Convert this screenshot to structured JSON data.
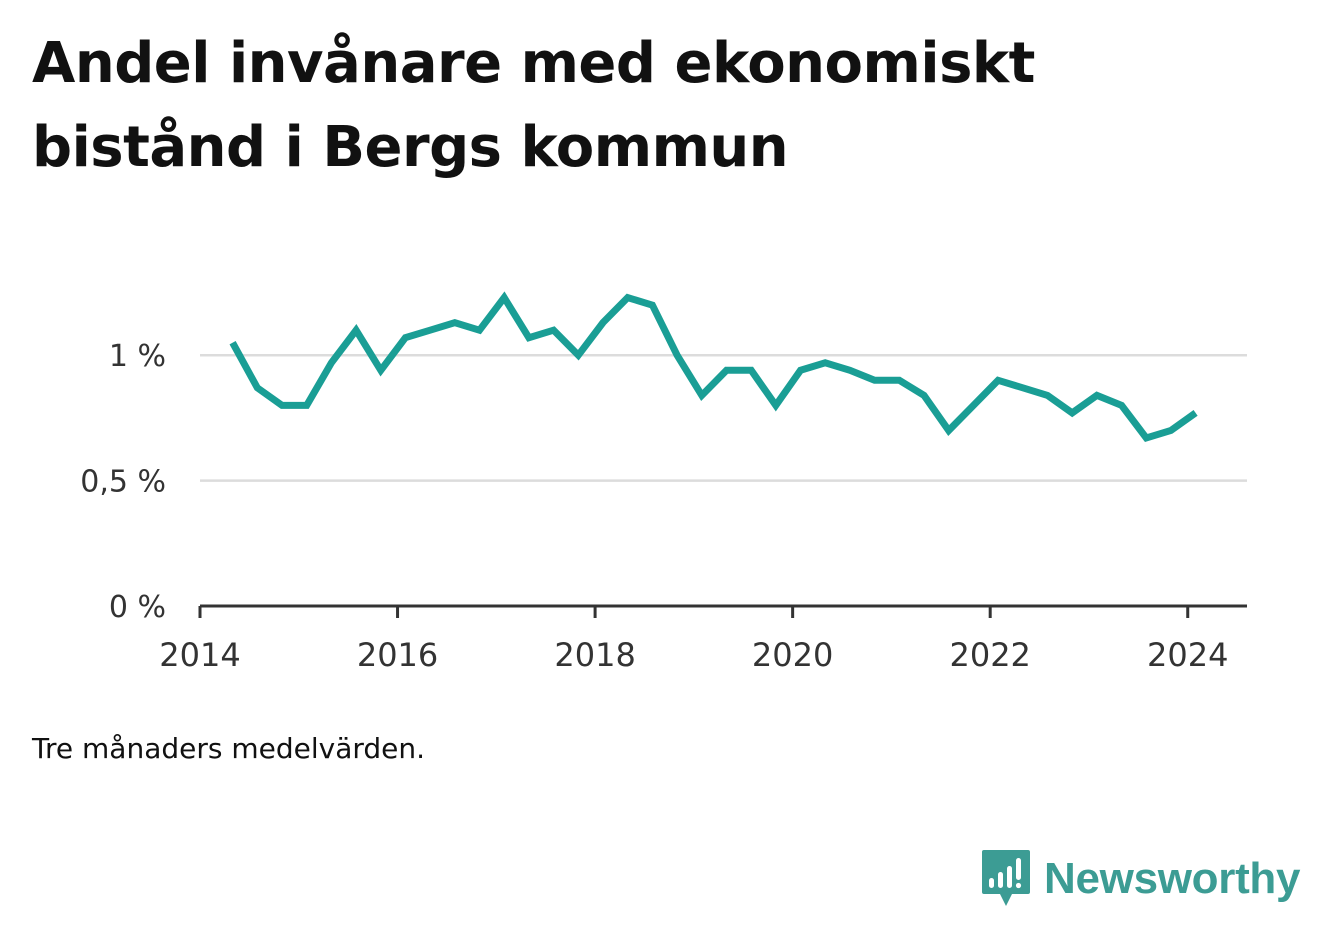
{
  "title": "Andel invånare med ekonomiskt bistånd i Bergs kommun",
  "note": "Tre månaders medelvärden.",
  "brand": {
    "name": "Newsworthy",
    "icon": "bar-chart-speech-icon",
    "color": "#3c9c94"
  },
  "chart_data": {
    "type": "line",
    "title": "Andel invånare med ekonomiskt bistånd i Bergs kommun",
    "xlabel": "",
    "ylabel": "",
    "xlim": [
      2014,
      2024.6
    ],
    "ylim": [
      0,
      1.3
    ],
    "yticks": [
      {
        "value": 0,
        "label": "0 %"
      },
      {
        "value": 0.5,
        "label": "0,5 %"
      },
      {
        "value": 1,
        "label": "1 %"
      }
    ],
    "xticks": [
      {
        "value": 2014,
        "label": "2014"
      },
      {
        "value": 2016,
        "label": "2016"
      },
      {
        "value": 2018,
        "label": "2018"
      },
      {
        "value": 2020,
        "label": "2020"
      },
      {
        "value": 2022,
        "label": "2022"
      },
      {
        "value": 2024,
        "label": "2024"
      }
    ],
    "grid": true,
    "line_color": "#1a9e95",
    "series": [
      {
        "x": [
          2014.33,
          2014.58,
          2014.83,
          2015.08,
          2015.33,
          2015.58,
          2015.83,
          2016.08,
          2016.33,
          2016.58,
          2016.83,
          2017.08,
          2017.33,
          2017.58,
          2017.83,
          2018.08,
          2018.33,
          2018.58,
          2018.83,
          2019.08,
          2019.33,
          2019.58,
          2019.83,
          2020.08,
          2020.33,
          2020.58,
          2020.83,
          2021.08,
          2021.33,
          2021.58,
          2021.83,
          2022.08,
          2022.33,
          2022.58,
          2022.83,
          2023.08,
          2023.33,
          2023.58,
          2023.83,
          2024.08
        ],
        "values": [
          1.05,
          0.87,
          0.8,
          0.8,
          0.97,
          1.1,
          0.94,
          1.07,
          1.1,
          1.13,
          1.1,
          1.23,
          1.07,
          1.1,
          1.0,
          1.13,
          1.23,
          1.2,
          1.0,
          0.84,
          0.94,
          0.94,
          0.8,
          0.94,
          0.97,
          0.94,
          0.9,
          0.9,
          0.84,
          0.7,
          0.8,
          0.9,
          0.87,
          0.84,
          0.77,
          0.84,
          0.8,
          0.67,
          0.7,
          0.77
        ]
      }
    ]
  }
}
